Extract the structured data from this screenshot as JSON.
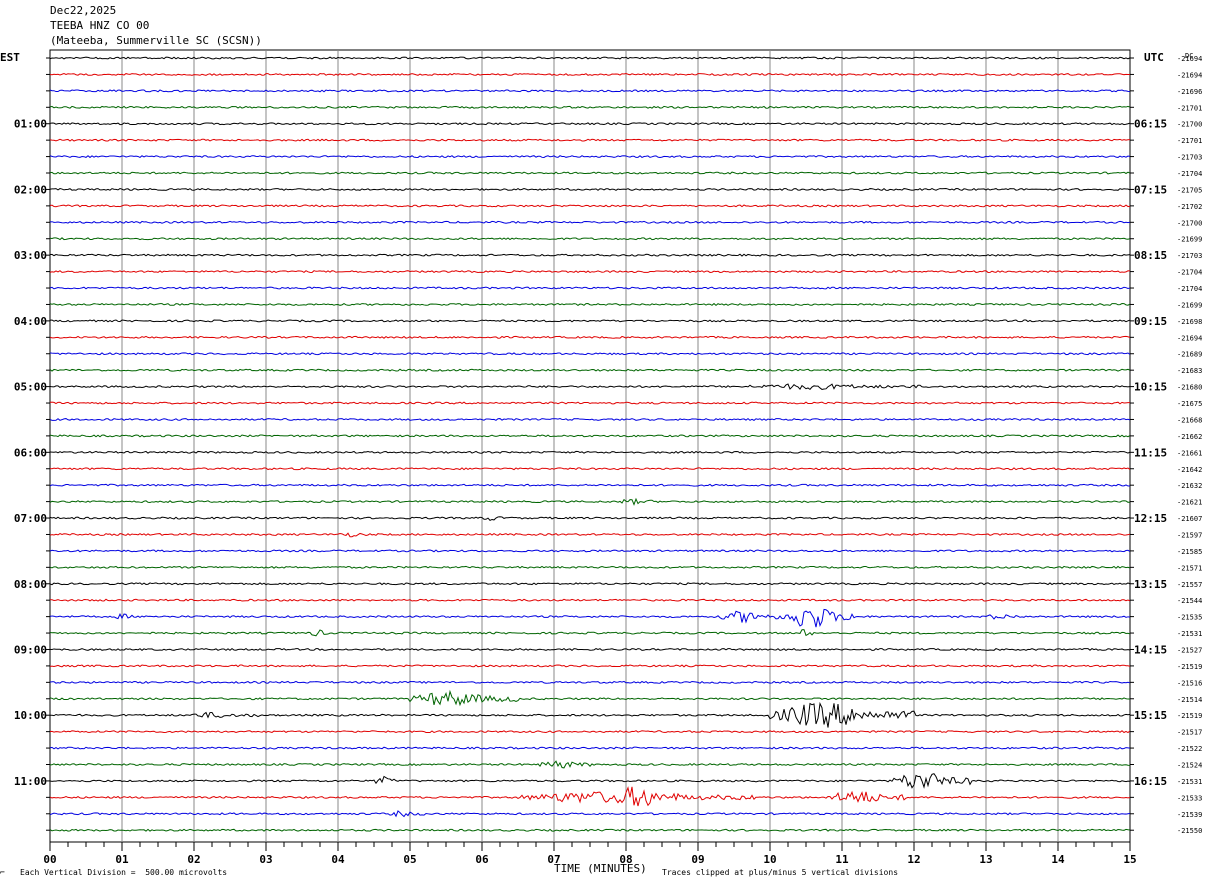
{
  "header": {
    "date": "Dec22,2025",
    "station": "TEEBA HNZ CO 00",
    "location": "(Mateeba, Summerville SC (SCSN))"
  },
  "left_timezone": "EST",
  "right_timezone": "UTC",
  "dc_label": "DC",
  "left_hour_labels": [
    "01:00",
    "02:00",
    "03:00",
    "04:00",
    "05:00",
    "06:00",
    "07:00",
    "08:00",
    "09:00",
    "10:00",
    "11:00"
  ],
  "right_hour_labels": [
    "06:15",
    "07:15",
    "08:15",
    "09:15",
    "10:15",
    "11:15",
    "12:15",
    "13:15",
    "14:15",
    "15:15",
    "16:15"
  ],
  "footer": {
    "left_note": "Each Vertical Division =  500.00 microvolts",
    "x_title": "TIME (MINUTES)",
    "right_note": "Traces clipped at plus/minus 5 vertical divisions"
  },
  "colors": {
    "black": "#000000",
    "red": "#e00000",
    "blue": "#0000e0",
    "green": "#006400",
    "grid": "#888888"
  },
  "chart_data": {
    "type": "line",
    "title": "",
    "xlabel": "TIME (MINUTES)",
    "ylabel": "",
    "xlim": [
      0,
      15
    ],
    "x_ticks": [
      "00",
      "01",
      "02",
      "03",
      "04",
      "05",
      "06",
      "07",
      "08",
      "09",
      "10",
      "11",
      "12",
      "13",
      "14",
      "15"
    ],
    "grid": true,
    "trace_count": 48,
    "trace_colors": [
      "black",
      "red",
      "blue",
      "green"
    ],
    "dc_offsets": [
      -21694,
      -21694,
      -21696,
      -21701,
      -21700,
      -21701,
      -21703,
      -21704,
      -21705,
      -21702,
      -21700,
      -21699,
      -21703,
      -21704,
      -21704,
      -21699,
      -21698,
      -21694,
      -21689,
      -21683,
      -21680,
      -21675,
      -21668,
      -21662,
      -21661,
      -21642,
      -21632,
      -21621,
      -21607,
      -21597,
      -21585,
      -21571,
      -21557,
      -21544,
      -21535,
      -21531,
      -21527,
      -21519,
      -21516,
      -21514,
      -21519,
      -21517,
      -21522,
      -21524,
      -21531,
      -21533,
      -21539,
      -21550
    ],
    "events": [
      {
        "trace": 20,
        "start_min": 9.7,
        "end_min": 12.1,
        "amplitude": 0.6
      },
      {
        "trace": 27,
        "start_min": 7.9,
        "end_min": 8.4,
        "amplitude": 0.6
      },
      {
        "trace": 28,
        "start_min": 6.0,
        "end_min": 6.3,
        "amplitude": 0.5
      },
      {
        "trace": 29,
        "start_min": 4.0,
        "end_min": 4.4,
        "amplitude": 0.5
      },
      {
        "trace": 34,
        "start_min": 0.9,
        "end_min": 1.2,
        "amplitude": 0.6
      },
      {
        "trace": 34,
        "start_min": 9.3,
        "end_min": 10.2,
        "amplitude": 1.5
      },
      {
        "trace": 34,
        "start_min": 10.2,
        "end_min": 11.2,
        "amplitude": 3.5
      },
      {
        "trace": 34,
        "start_min": 13.0,
        "end_min": 13.5,
        "amplitude": 0.6
      },
      {
        "trace": 35,
        "start_min": 3.6,
        "end_min": 3.9,
        "amplitude": 0.8
      },
      {
        "trace": 35,
        "start_min": 10.4,
        "end_min": 10.6,
        "amplitude": 1.0
      },
      {
        "trace": 39,
        "start_min": 5.0,
        "end_min": 6.5,
        "amplitude": 2.0
      },
      {
        "trace": 40,
        "start_min": 1.9,
        "end_min": 2.9,
        "amplitude": 0.6
      },
      {
        "trace": 40,
        "start_min": 10.0,
        "end_min": 12.0,
        "amplitude": 3.5
      },
      {
        "trace": 43,
        "start_min": 6.8,
        "end_min": 7.5,
        "amplitude": 1.0
      },
      {
        "trace": 44,
        "start_min": 4.5,
        "end_min": 4.8,
        "amplitude": 1.2
      },
      {
        "trace": 44,
        "start_min": 11.7,
        "end_min": 12.8,
        "amplitude": 2.5
      },
      {
        "trace": 45,
        "start_min": 6.5,
        "end_min": 9.8,
        "amplitude": 1.5
      },
      {
        "trace": 45,
        "start_min": 7.8,
        "end_min": 8.8,
        "amplitude": 3.0
      },
      {
        "trace": 45,
        "start_min": 10.8,
        "end_min": 11.9,
        "amplitude": 1.8
      },
      {
        "trace": 46,
        "start_min": 4.7,
        "end_min": 5.2,
        "amplitude": 0.6
      }
    ]
  }
}
